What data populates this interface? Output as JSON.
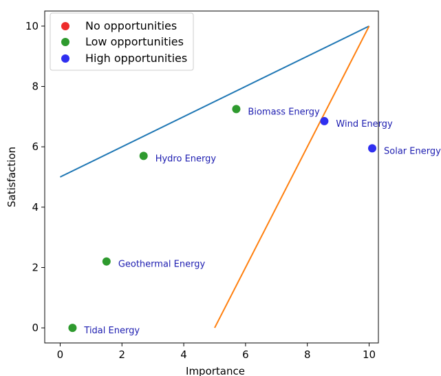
{
  "chart_data": {
    "type": "scatter",
    "xlabel": "Importance",
    "ylabel": "Satisfaction",
    "xlim": [
      -0.5,
      10.3
    ],
    "ylim": [
      -0.5,
      10.5
    ],
    "x_ticks": [
      0,
      2,
      4,
      6,
      8,
      10
    ],
    "y_ticks": [
      0,
      2,
      4,
      6,
      8,
      10
    ],
    "grid": false,
    "legend_position": "top-left",
    "legend": [
      {
        "label": "No opportunities",
        "color": "#ee2c2c"
      },
      {
        "label": "Low opportunities",
        "color": "#2e9a2e"
      },
      {
        "label": "High opportunities",
        "color": "#2f2ff0"
      }
    ],
    "lines": [
      {
        "color": "#1f77b4",
        "points": [
          [
            0,
            5
          ],
          [
            10,
            10
          ]
        ]
      },
      {
        "color": "#ff7f0e",
        "points": [
          [
            5,
            0
          ],
          [
            10,
            10
          ]
        ]
      }
    ],
    "points": [
      {
        "label": "Tidal Energy",
        "x": 0.4,
        "y": 0.0,
        "category": "Low opportunities",
        "color": "#2e9a2e"
      },
      {
        "label": "Geothermal Energy",
        "x": 1.5,
        "y": 2.2,
        "category": "Low opportunities",
        "color": "#2e9a2e"
      },
      {
        "label": "Hydro Energy",
        "x": 2.7,
        "y": 5.7,
        "category": "Low opportunities",
        "color": "#2e9a2e"
      },
      {
        "label": "Biomass Energy",
        "x": 5.7,
        "y": 7.25,
        "category": "Low opportunities",
        "color": "#2e9a2e"
      },
      {
        "label": "Wind Energy",
        "x": 8.55,
        "y": 6.85,
        "category": "High opportunities",
        "color": "#2f2ff0"
      },
      {
        "label": "Solar Energy",
        "x": 10.1,
        "y": 5.95,
        "category": "High opportunities",
        "color": "#2f2ff0"
      }
    ]
  }
}
